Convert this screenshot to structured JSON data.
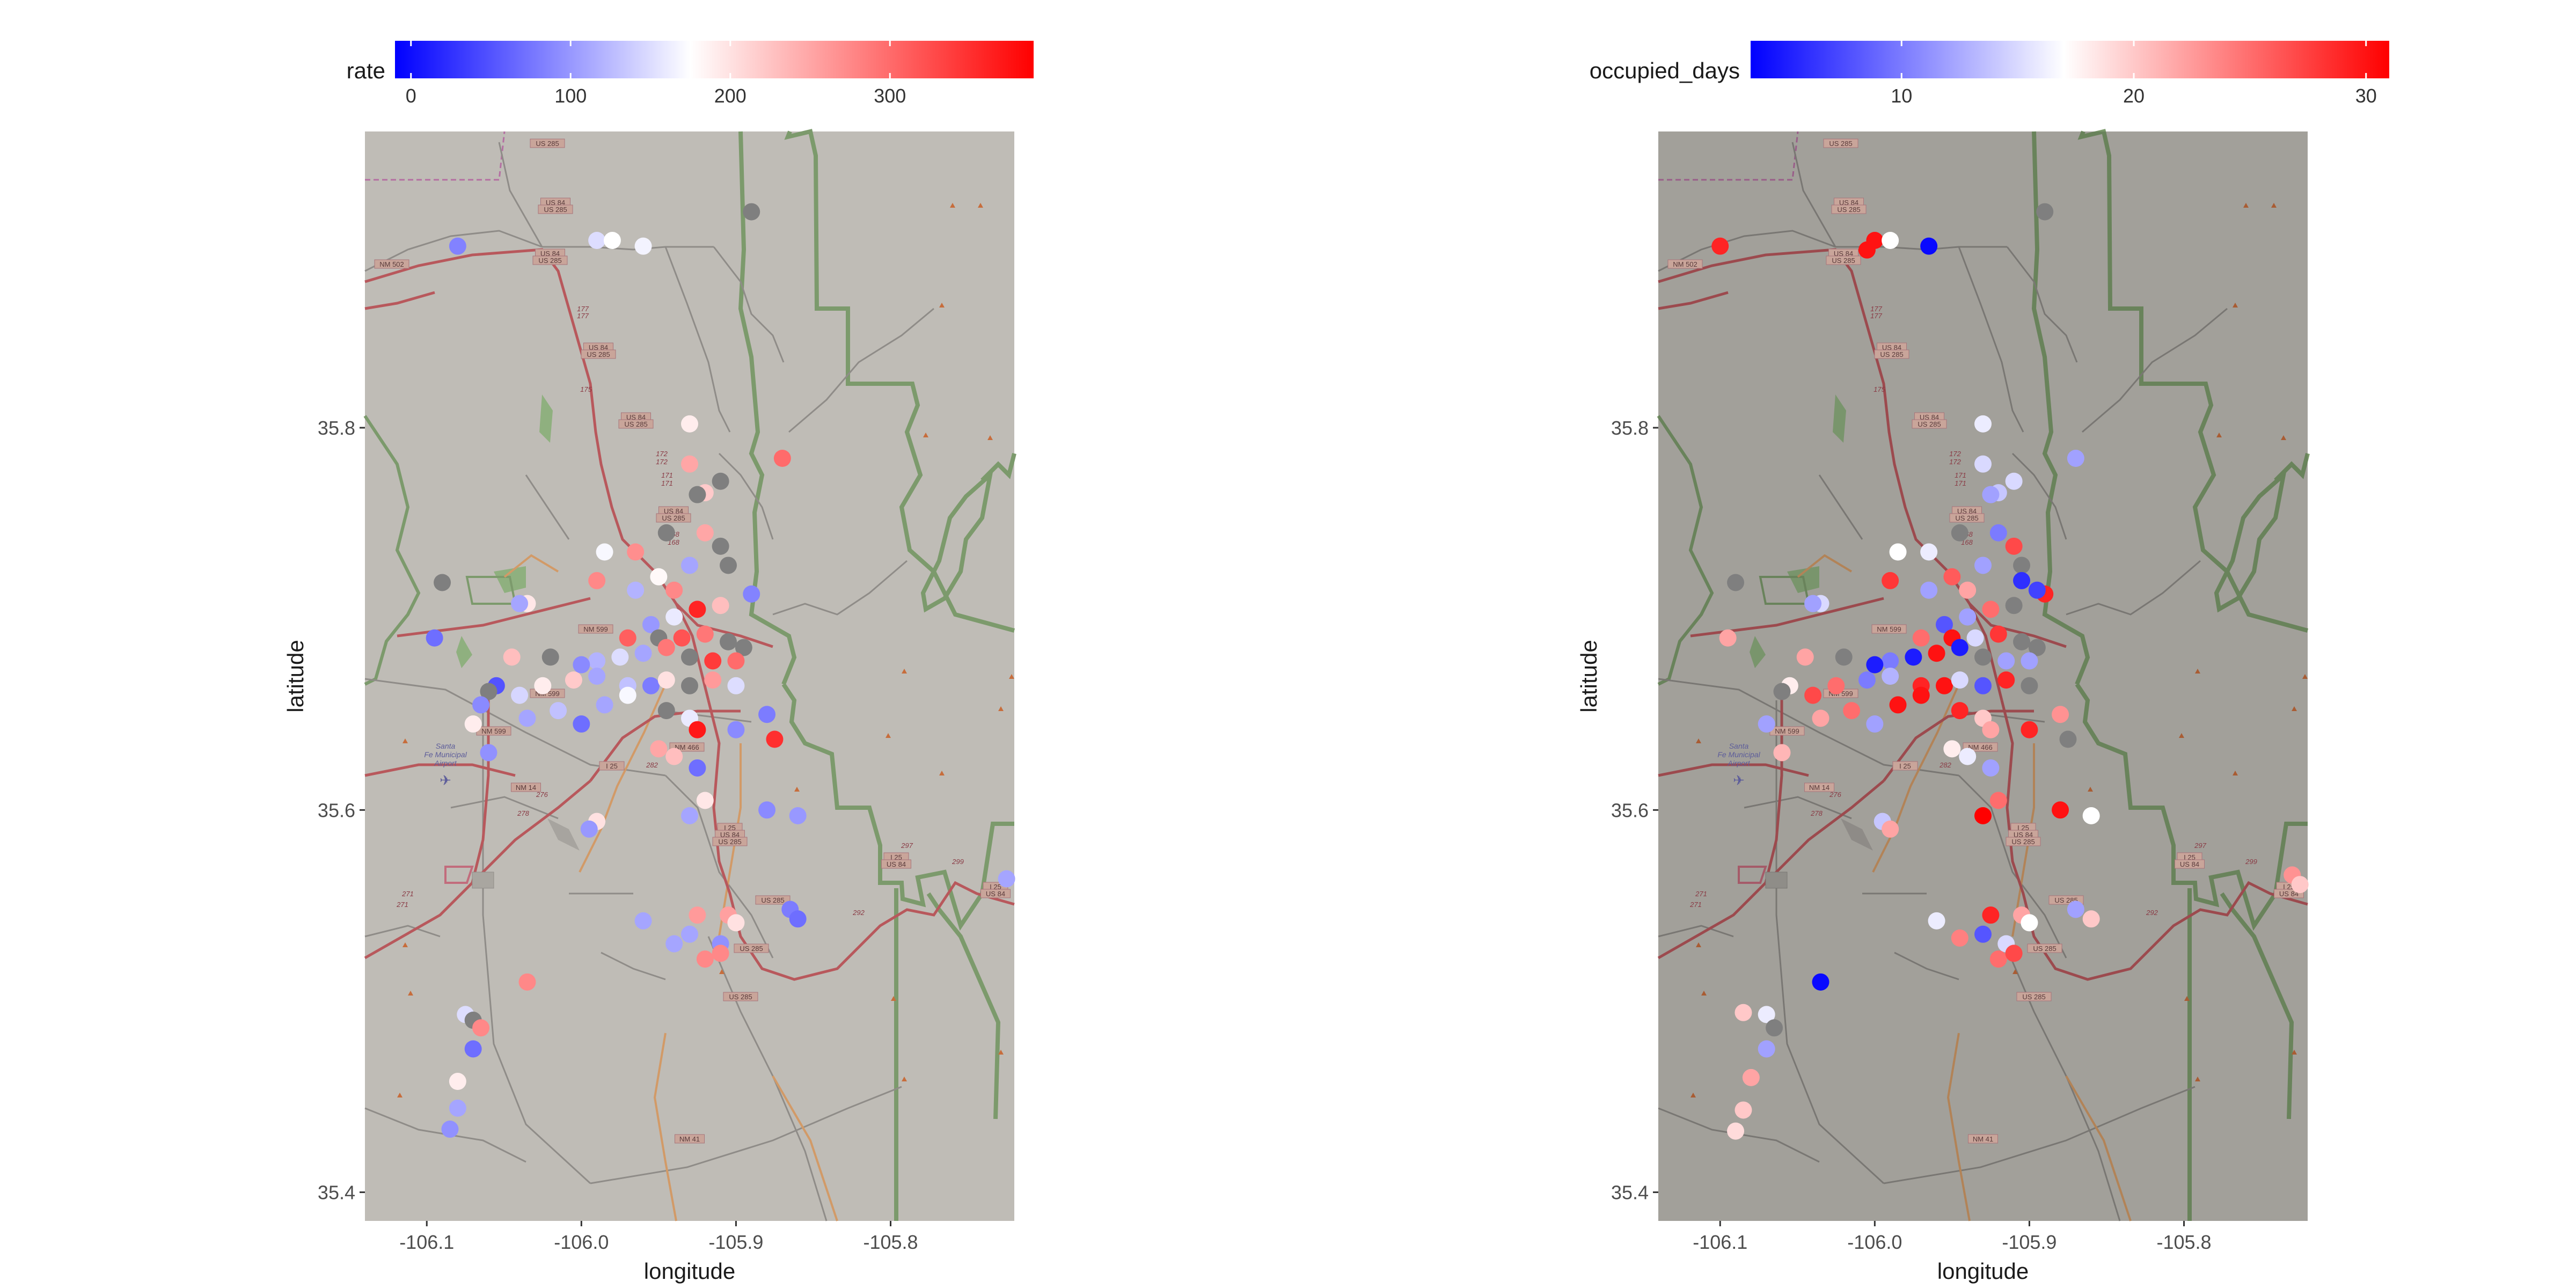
{
  "panels": [
    {
      "id": "rate",
      "legend": {
        "title": "rate",
        "ticks": [
          {
            "label": "0",
            "value": 0
          },
          {
            "label": "100",
            "value": 100
          },
          {
            "label": "200",
            "value": 200
          },
          {
            "label": "300",
            "value": 300
          }
        ],
        "domain": [
          -10,
          390
        ],
        "midpoint": 175,
        "colors": {
          "low": "#0000ff",
          "mid": "#ffffff",
          "high": "#ff0000"
        }
      },
      "map_dim": 0,
      "points": [
        [
          -106.08,
          35.895,
          84
        ],
        [
          -105.99,
          35.898,
          150
        ],
        [
          -105.98,
          35.898,
          175
        ],
        [
          -105.96,
          35.895,
          166
        ],
        [
          -105.89,
          35.913,
          null
        ],
        [
          -105.93,
          35.802,
          190
        ],
        [
          -105.87,
          35.784,
          300
        ],
        [
          -105.93,
          35.781,
          250
        ],
        [
          -105.92,
          35.766,
          220
        ],
        [
          -105.91,
          35.772,
          null
        ],
        [
          -105.925,
          35.765,
          null
        ],
        [
          -105.945,
          35.745,
          null
        ],
        [
          -105.965,
          35.735,
          270
        ],
        [
          -105.985,
          35.735,
          170
        ],
        [
          -105.92,
          35.745,
          250
        ],
        [
          -105.91,
          35.738,
          null
        ],
        [
          -105.905,
          35.728,
          null
        ],
        [
          -105.93,
          35.728,
          110
        ],
        [
          -105.95,
          35.722,
          180
        ],
        [
          -105.94,
          35.715,
          275
        ],
        [
          -105.965,
          35.715,
          120
        ],
        [
          -105.99,
          35.72,
          275
        ],
        [
          -106.09,
          35.719,
          null
        ],
        [
          -106.035,
          35.708,
          195
        ],
        [
          -106.04,
          35.708,
          110
        ],
        [
          -106.095,
          35.69,
          70
        ],
        [
          -105.89,
          35.713,
          85
        ],
        [
          -105.91,
          35.707,
          230
        ],
        [
          -105.925,
          35.705,
          360
        ],
        [
          -105.94,
          35.701,
          160
        ],
        [
          -105.955,
          35.697,
          100
        ],
        [
          -105.97,
          35.69,
          310
        ],
        [
          -105.95,
          35.69,
          null
        ],
        [
          -105.935,
          35.69,
          320
        ],
        [
          -105.92,
          35.692,
          290
        ],
        [
          -105.905,
          35.688,
          null
        ],
        [
          -105.895,
          35.685,
          null
        ],
        [
          -105.945,
          35.685,
          290
        ],
        [
          -105.93,
          35.68,
          null
        ],
        [
          -105.915,
          35.678,
          340
        ],
        [
          -105.9,
          35.678,
          300
        ],
        [
          -105.96,
          35.682,
          110
        ],
        [
          -105.975,
          35.68,
          150
        ],
        [
          -105.99,
          35.678,
          120
        ],
        [
          -106.0,
          35.676,
          90
        ],
        [
          -106.02,
          35.68,
          null
        ],
        [
          -106.045,
          35.68,
          230
        ],
        [
          -106.025,
          35.665,
          190
        ],
        [
          -106.04,
          35.66,
          145
        ],
        [
          -106.055,
          35.665,
          50
        ],
        [
          -106.06,
          35.662,
          null
        ],
        [
          -106.065,
          35.655,
          90
        ],
        [
          -106.005,
          35.668,
          220
        ],
        [
          -105.99,
          35.67,
          110
        ],
        [
          -105.97,
          35.665,
          130
        ],
        [
          -105.955,
          35.665,
          80
        ],
        [
          -105.945,
          35.668,
          200
        ],
        [
          -105.93,
          35.665,
          null
        ],
        [
          -105.915,
          35.668,
          260
        ],
        [
          -105.9,
          35.665,
          150
        ],
        [
          -105.985,
          35.655,
          110
        ],
        [
          -105.97,
          35.66,
          170
        ],
        [
          -106.015,
          35.652,
          130
        ],
        [
          -106.035,
          35.648,
          110
        ],
        [
          -105.945,
          35.652,
          null
        ],
        [
          -105.93,
          35.648,
          160
        ],
        [
          -106.0,
          35.645,
          70
        ],
        [
          -106.07,
          35.645,
          190
        ],
        [
          -105.925,
          35.642,
          370
        ],
        [
          -105.9,
          35.642,
          90
        ],
        [
          -105.88,
          35.65,
          80
        ],
        [
          -105.875,
          35.637,
          350
        ],
        [
          -105.95,
          35.632,
          250
        ],
        [
          -105.94,
          35.628,
          230
        ],
        [
          -105.925,
          35.622,
          70
        ],
        [
          -106.06,
          35.63,
          95
        ],
        [
          -105.92,
          35.605,
          195
        ],
        [
          -105.88,
          35.6,
          90
        ],
        [
          -105.86,
          35.597,
          100
        ],
        [
          -105.93,
          35.597,
          110
        ],
        [
          -105.99,
          35.594,
          200
        ],
        [
          -105.995,
          35.59,
          100
        ],
        [
          -105.96,
          35.542,
          110
        ],
        [
          -105.925,
          35.545,
          260
        ],
        [
          -105.905,
          35.545,
          255
        ],
        [
          -105.9,
          35.541,
          200
        ],
        [
          -105.93,
          35.535,
          110
        ],
        [
          -105.94,
          35.53,
          110
        ],
        [
          -105.91,
          35.53,
          95
        ],
        [
          -105.92,
          35.522,
          275
        ],
        [
          -105.91,
          35.525,
          275
        ],
        [
          -105.865,
          35.548,
          80
        ],
        [
          -105.86,
          35.543,
          70
        ],
        [
          -105.725,
          35.564,
          110
        ],
        [
          -106.035,
          35.51,
          275
        ],
        [
          -106.075,
          35.493,
          150
        ],
        [
          -106.07,
          35.49,
          null
        ],
        [
          -106.065,
          35.486,
          275
        ],
        [
          -106.07,
          35.475,
          70
        ],
        [
          -106.08,
          35.458,
          190
        ],
        [
          -106.08,
          35.444,
          110
        ],
        [
          -106.085,
          35.433,
          95
        ]
      ]
    },
    {
      "id": "occupied_days",
      "legend": {
        "title": "occupied_days",
        "ticks": [
          {
            "label": "10",
            "value": 10
          },
          {
            "label": "20",
            "value": 20
          },
          {
            "label": "30",
            "value": 30
          }
        ],
        "domain": [
          3.5,
          31
        ],
        "midpoint": 17,
        "colors": {
          "low": "#0000ff",
          "mid": "#ffffff",
          "high": "#ff0000"
        }
      },
      "map_dim": 0.15,
      "points": [
        [
          -106.1,
          35.895,
          29
        ],
        [
          -106.0,
          35.898,
          30
        ],
        [
          -106.005,
          35.893,
          30
        ],
        [
          -105.99,
          35.898,
          17
        ],
        [
          -105.965,
          35.895,
          4
        ],
        [
          -105.89,
          35.913,
          null
        ],
        [
          -105.93,
          35.802,
          16
        ],
        [
          -105.87,
          35.784,
          12
        ],
        [
          -105.93,
          35.781,
          15
        ],
        [
          -105.92,
          35.766,
          14
        ],
        [
          -105.925,
          35.765,
          12
        ],
        [
          -105.91,
          35.772,
          15
        ],
        [
          -105.945,
          35.745,
          null
        ],
        [
          -105.965,
          35.735,
          16
        ],
        [
          -105.985,
          35.735,
          17
        ],
        [
          -105.92,
          35.745,
          10
        ],
        [
          -105.91,
          35.738,
          27
        ],
        [
          -105.905,
          35.728,
          null
        ],
        [
          -105.93,
          35.728,
          12
        ],
        [
          -105.95,
          35.722,
          26
        ],
        [
          -105.94,
          35.715,
          22
        ],
        [
          -105.905,
          35.72,
          6
        ],
        [
          -105.965,
          35.715,
          12
        ],
        [
          -105.99,
          35.72,
          28
        ],
        [
          -106.09,
          35.719,
          null
        ],
        [
          -106.035,
          35.708,
          15
        ],
        [
          -106.04,
          35.708,
          12
        ],
        [
          -106.095,
          35.69,
          22
        ],
        [
          -105.89,
          35.713,
          29
        ],
        [
          -105.895,
          35.715,
          7
        ],
        [
          -105.91,
          35.707,
          null
        ],
        [
          -105.925,
          35.705,
          25
        ],
        [
          -105.94,
          35.701,
          12
        ],
        [
          -105.955,
          35.697,
          8
        ],
        [
          -105.97,
          35.69,
          25
        ],
        [
          -105.95,
          35.69,
          30
        ],
        [
          -105.935,
          35.69,
          15
        ],
        [
          -105.92,
          35.692,
          28
        ],
        [
          -105.905,
          35.688,
          null
        ],
        [
          -105.895,
          35.685,
          null
        ],
        [
          -105.945,
          35.685,
          5
        ],
        [
          -105.93,
          35.68,
          null
        ],
        [
          -105.915,
          35.678,
          12
        ],
        [
          -105.9,
          35.678,
          12
        ],
        [
          -105.96,
          35.682,
          30
        ],
        [
          -105.975,
          35.68,
          5
        ],
        [
          -105.99,
          35.678,
          10
        ],
        [
          -106.0,
          35.676,
          5
        ],
        [
          -106.02,
          35.68,
          null
        ],
        [
          -106.045,
          35.68,
          22
        ],
        [
          -106.025,
          35.665,
          25
        ],
        [
          -106.04,
          35.66,
          27
        ],
        [
          -106.055,
          35.665,
          18
        ],
        [
          -106.06,
          35.662,
          null
        ],
        [
          -106.005,
          35.668,
          10
        ],
        [
          -105.99,
          35.67,
          13
        ],
        [
          -105.97,
          35.665,
          29
        ],
        [
          -105.955,
          35.665,
          30
        ],
        [
          -105.945,
          35.668,
          15
        ],
        [
          -105.93,
          35.665,
          8
        ],
        [
          -105.915,
          35.668,
          29
        ],
        [
          -105.9,
          35.665,
          null
        ],
        [
          -105.985,
          35.655,
          30
        ],
        [
          -105.97,
          35.66,
          30
        ],
        [
          -106.015,
          35.652,
          25
        ],
        [
          -106.035,
          35.648,
          22
        ],
        [
          -105.945,
          35.652,
          29
        ],
        [
          -105.93,
          35.648,
          20
        ],
        [
          -106.0,
          35.645,
          12
        ],
        [
          -106.07,
          35.645,
          12
        ],
        [
          -105.925,
          35.642,
          22
        ],
        [
          -105.9,
          35.642,
          29
        ],
        [
          -105.88,
          35.65,
          23
        ],
        [
          -105.875,
          35.637,
          null
        ],
        [
          -105.95,
          35.632,
          18
        ],
        [
          -105.94,
          35.628,
          16
        ],
        [
          -105.925,
          35.622,
          12
        ],
        [
          -106.06,
          35.63,
          21
        ],
        [
          -105.92,
          35.605,
          25
        ],
        [
          -105.88,
          35.6,
          30
        ],
        [
          -105.86,
          35.597,
          17
        ],
        [
          -105.93,
          35.597,
          31
        ],
        [
          -105.995,
          35.594,
          14
        ],
        [
          -105.99,
          35.59,
          22
        ],
        [
          -105.96,
          35.542,
          16
        ],
        [
          -105.925,
          35.545,
          29
        ],
        [
          -105.905,
          35.545,
          22
        ],
        [
          -105.9,
          35.541,
          17
        ],
        [
          -105.93,
          35.535,
          8
        ],
        [
          -105.945,
          35.533,
          24
        ],
        [
          -105.915,
          35.53,
          15
        ],
        [
          -105.92,
          35.522,
          25
        ],
        [
          -105.91,
          35.525,
          27
        ],
        [
          -105.87,
          35.548,
          12
        ],
        [
          -105.86,
          35.543,
          20
        ],
        [
          -105.73,
          35.566,
          23
        ],
        [
          -105.725,
          35.561,
          20
        ],
        [
          -106.035,
          35.51,
          4
        ],
        [
          -106.085,
          35.494,
          20
        ],
        [
          -106.07,
          35.493,
          16
        ],
        [
          -106.065,
          35.486,
          null
        ],
        [
          -106.07,
          35.475,
          12
        ],
        [
          -106.08,
          35.46,
          22
        ],
        [
          -106.085,
          35.443,
          20
        ],
        [
          -106.09,
          35.432,
          19
        ]
      ]
    }
  ],
  "axes": {
    "xlabel": "longitude",
    "ylabel": "latitude",
    "xticks": [
      {
        "label": "-106.1",
        "value": -106.1
      },
      {
        "label": "-106.0",
        "value": -106.0
      },
      {
        "label": "-105.9",
        "value": -105.9
      },
      {
        "label": "-105.8",
        "value": -105.8
      }
    ],
    "yticks": [
      {
        "label": "35.4",
        "value": 35.4
      },
      {
        "label": "35.6",
        "value": 35.6
      },
      {
        "label": "35.8",
        "value": 35.8
      }
    ],
    "xlim": [
      -106.14,
      -105.72
    ],
    "ylim": [
      35.385,
      35.955
    ]
  },
  "na_color": "#7f7f7f",
  "map_labels": {
    "roads": [
      "US 285",
      "US 84",
      "US 285",
      "US 84",
      "US 285",
      "NM 502",
      "US 84",
      "US 285",
      "US 84",
      "US 285",
      "US 84",
      "US 285",
      "NM 599",
      "NM 599",
      "NM 599",
      "NM 466",
      "NM 14",
      "I 25",
      "I 25",
      "US 84",
      "US 285",
      "US 285",
      "US 285",
      "US 285",
      "I 25",
      "US 84",
      "I 25",
      "US 84",
      "NM 41"
    ],
    "airport": [
      "Santa",
      "Fe Municipal",
      "Airport"
    ],
    "mileposts": [
      "177",
      "177",
      "175",
      "172",
      "172",
      "171",
      "171",
      "168",
      "168",
      "282",
      "278",
      "276",
      "271",
      "271",
      "297",
      "299",
      "292"
    ]
  }
}
